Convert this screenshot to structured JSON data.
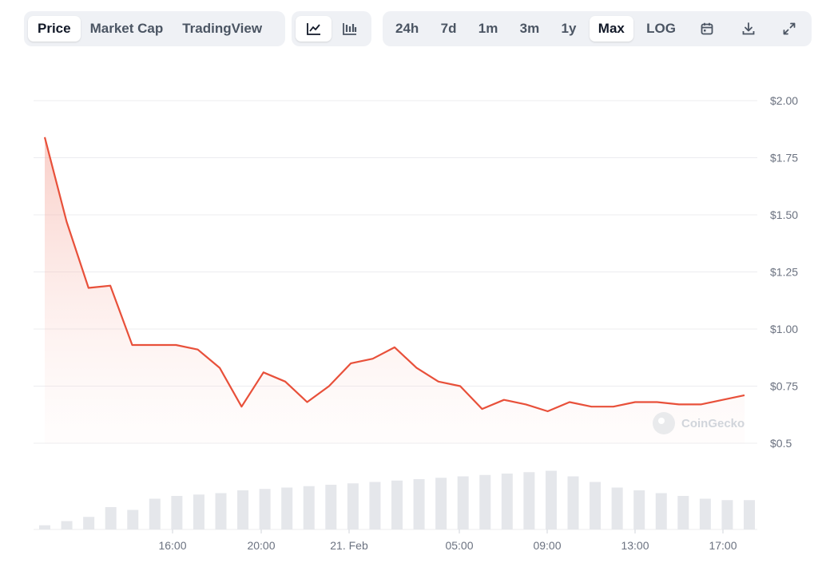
{
  "toolbar": {
    "view_tabs": [
      "Price",
      "Market Cap",
      "TradingView"
    ],
    "active_view": "Price",
    "chart_type_icons": [
      "line-chart-icon",
      "candlestick-chart-icon"
    ],
    "active_chart_type": "line-chart-icon",
    "ranges": [
      "24h",
      "7d",
      "1m",
      "3m",
      "1y",
      "Max",
      "LOG"
    ],
    "active_range": "Max",
    "action_icons": [
      "calendar-icon",
      "download-icon",
      "expand-icon"
    ]
  },
  "watermark": "CoinGecko",
  "colors": {
    "line": "#e8503a",
    "area": "#fde2de",
    "volume": "#e5e7eb",
    "grid": "#ececef"
  },
  "chart_data": {
    "type": "line",
    "x_tick_labels": [
      "16:00",
      "20:00",
      "21. Feb",
      "05:00",
      "09:00",
      "13:00",
      "17:00"
    ],
    "y_tick_labels": [
      "$2.00",
      "$1.75",
      "$1.50",
      "$1.25",
      "$1.00",
      "$0.75",
      "$0.5"
    ],
    "y_ticks": [
      2.0,
      1.75,
      1.5,
      1.25,
      1.0,
      0.75,
      0.5
    ],
    "ylim": [
      0.5,
      2.0
    ],
    "grid": true,
    "series": [
      {
        "values": [
          1.84,
          1.47,
          1.18,
          1.19,
          0.93,
          0.93,
          0.93,
          0.91,
          0.83,
          0.66,
          0.81,
          0.77,
          0.68,
          0.75,
          0.85,
          0.87,
          0.92,
          0.83,
          0.77,
          0.75,
          0.65,
          0.69,
          0.67,
          0.64,
          0.68,
          0.66,
          0.66,
          0.68,
          0.68,
          0.67,
          0.67,
          0.69,
          0.71
        ]
      }
    ],
    "volume": [
      0.03,
      0.06,
      0.09,
      0.16,
      0.14,
      0.22,
      0.24,
      0.25,
      0.26,
      0.28,
      0.29,
      0.3,
      0.31,
      0.32,
      0.33,
      0.34,
      0.35,
      0.36,
      0.37,
      0.38,
      0.39,
      0.4,
      0.41,
      0.42,
      0.38,
      0.34,
      0.3,
      0.28,
      0.26,
      0.24,
      0.22,
      0.21,
      0.21
    ]
  }
}
